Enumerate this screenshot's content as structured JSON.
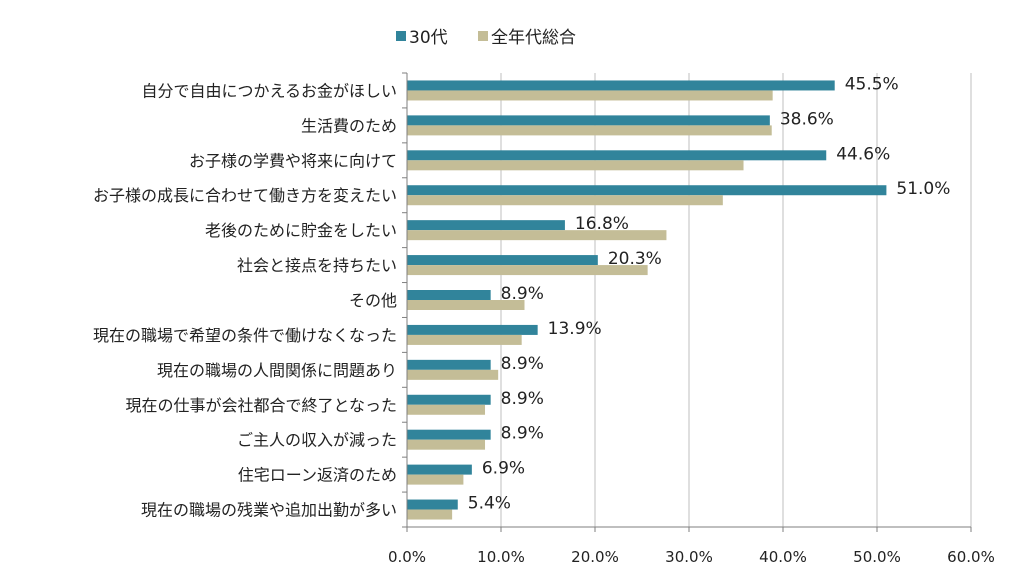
{
  "chart_data": {
    "type": "bar",
    "orientation": "horizontal",
    "categories": [
      "自分で自由につかえるお金がほしい",
      "生活費のため",
      "お子様の学費や将来に向けて",
      "お子様の成長に合わせて働き方を変えたい",
      "老後のために貯金をしたい",
      "社会と接点を持ちたい",
      "その他",
      "現在の職場で希望の条件で働けなくなった",
      "現在の職場の人間関係に問題あり",
      "現在の仕事が会社都合で終了となった",
      "ご主人の収入が減った",
      "住宅ローン返済のため",
      "現在の職場の残業や追加出勤が多い"
    ],
    "series": [
      {
        "name": "30代",
        "color": "#31849b",
        "values": [
          45.5,
          38.6,
          44.6,
          51.0,
          16.8,
          20.3,
          8.9,
          13.9,
          8.9,
          8.9,
          8.9,
          6.9,
          5.4
        ],
        "labels": [
          "45.5%",
          "38.6%",
          "44.6%",
          "51.0%",
          "16.8%",
          "20.3%",
          "8.9%",
          "13.9%",
          "8.9%",
          "8.9%",
          "8.9%",
          "6.9%",
          "5.4%"
        ]
      },
      {
        "name": "全年代総合",
        "color": "#c4bd97",
        "values": [
          38.9,
          38.8,
          35.8,
          33.6,
          27.6,
          25.6,
          12.5,
          12.2,
          9.7,
          8.3,
          8.3,
          6.0,
          4.8
        ]
      }
    ],
    "xlim": [
      0,
      60
    ],
    "xticks": [
      "0.0%",
      "10.0%",
      "20.0%",
      "30.0%",
      "40.0%",
      "50.0%",
      "60.0%"
    ],
    "xtick_values": [
      0,
      10,
      20,
      30,
      40,
      50,
      60
    ],
    "grid": "vertical",
    "legend_position": "top"
  }
}
